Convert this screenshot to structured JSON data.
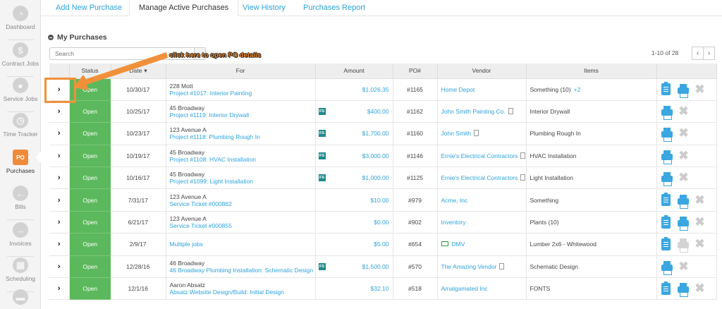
{
  "sidebar": {
    "items": [
      {
        "label": "Dashboard",
        "icon": "dashboard-gauge-icon",
        "glyph": "◔"
      },
      {
        "label": "Contract Jobs",
        "icon": "contract-document-icon",
        "glyph": "$"
      },
      {
        "label": "Service Jobs",
        "icon": "map-pin-icon",
        "glyph": "●"
      },
      {
        "label": "Time Tracker",
        "icon": "clock-icon",
        "glyph": "◷"
      },
      {
        "label": "Purchases",
        "icon": "po-icon",
        "glyph": "PO",
        "active": true
      },
      {
        "label": "Bills",
        "icon": "arrow-left-circle-icon",
        "glyph": "←"
      },
      {
        "label": "Invoices",
        "icon": "arrow-right-circle-icon",
        "glyph": "→"
      },
      {
        "label": "Scheduling",
        "icon": "calendar-icon",
        "glyph": "▦"
      },
      {
        "label": "",
        "icon": "archive-box-icon",
        "glyph": "▬"
      }
    ]
  },
  "tabs": [
    {
      "label": "Add New Purchase"
    },
    {
      "label": "Manage Active Purchases",
      "active": true
    },
    {
      "label": "View History"
    },
    {
      "label": "Purchases Report"
    }
  ],
  "section_title": "My Purchases",
  "search": {
    "placeholder": "Search"
  },
  "pager": {
    "text": "1-10 of 28",
    "prev": "‹",
    "next": "›"
  },
  "annotation": {
    "text": "click here to open PO details",
    "color": "#f0913a"
  },
  "table": {
    "headers": [
      "",
      "Status",
      "Date",
      "For",
      "Amount",
      "PO#",
      "Vendor",
      "Items",
      ""
    ],
    "sort_indicator": "▾",
    "rows": [
      {
        "status": "Open",
        "date": "10/30/17",
        "address": "228 Mott",
        "job": "Project #1017: Interior Painting",
        "fs": false,
        "amount": "$1,026.35",
        "po": "#1165",
        "vendor": "Home Depot",
        "vendor_doc": false,
        "vendor_email": false,
        "items": "Something (10)",
        "items_more": "+2",
        "clipboard": true,
        "print_enabled": true
      },
      {
        "status": "Open",
        "date": "10/25/17",
        "address": "45 Broadway",
        "job": "Project #1119: Interior Drywall",
        "fs": true,
        "amount": "$400.00",
        "po": "#1162",
        "vendor": "John Smith Painting Co.",
        "vendor_doc": true,
        "vendor_email": false,
        "items": "Interior Drywall",
        "clipboard": false,
        "print_enabled": true
      },
      {
        "status": "Open",
        "date": "10/23/17",
        "address": "123 Avenue A",
        "job": "Project #1118: Plumbing Rough In",
        "fs": true,
        "amount": "$1,700.00",
        "po": "#1160",
        "vendor": "John Smith",
        "vendor_doc": true,
        "vendor_email": false,
        "items": "Plumbing Rough In",
        "clipboard": false,
        "print_enabled": true
      },
      {
        "status": "Open",
        "date": "10/19/17",
        "address": "45 Broadway",
        "job": "Project #1108: HVAC Installation",
        "fs": true,
        "amount": "$3,000.00",
        "po": "#1146",
        "vendor": "Ernie's Electrical Contractors",
        "vendor_doc": true,
        "vendor_email": false,
        "items": "HVAC Installation",
        "clipboard": false,
        "print_enabled": true
      },
      {
        "status": "Open",
        "date": "10/16/17",
        "address": "45 Broadway",
        "job": "Project #1099: Light Installation",
        "fs": true,
        "amount": "$1,000.00",
        "po": "#1125",
        "vendor": "Ernie's Electrical Contractors",
        "vendor_doc": true,
        "vendor_email": false,
        "items": "Light Installation",
        "clipboard": false,
        "print_enabled": true
      },
      {
        "status": "Open",
        "date": "7/31/17",
        "address": "123 Avenue A",
        "job": "Service Ticket #000862",
        "fs": false,
        "amount": "$10.00",
        "po": "#979",
        "vendor": "Acme, Inc",
        "vendor_doc": false,
        "vendor_email": false,
        "items": "Something",
        "clipboard": true,
        "print_enabled": true
      },
      {
        "status": "Open",
        "date": "6/21/17",
        "address": "123 Avenue A",
        "job": "Service Ticket #000855",
        "fs": false,
        "amount": "$0.00",
        "po": "#902",
        "vendor": "Inventory",
        "vendor_doc": false,
        "vendor_email": false,
        "items": "Plants (10)",
        "clipboard": true,
        "print_enabled": true
      },
      {
        "status": "Open",
        "date": "2/9/17",
        "address": "",
        "job": "Multiple jobs",
        "fs": false,
        "amount": "$5.00",
        "po": "#654",
        "vendor": "DMV",
        "vendor_doc": false,
        "vendor_email": true,
        "items": "Lumber 2x6 - Whitewood",
        "clipboard": true,
        "print_enabled": false
      },
      {
        "status": "Open",
        "date": "12/28/16",
        "address": "46 Broadway",
        "job": "46 Broadway Plumbing Installation: Schematic Design",
        "fs": true,
        "amount": "$1,500.00",
        "po": "#570",
        "vendor": "The Amazing Vendor",
        "vendor_doc": true,
        "vendor_email": false,
        "items": "Schematic Design",
        "clipboard": false,
        "print_enabled": true
      },
      {
        "status": "Open",
        "date": "12/1/16",
        "address": "Aaron Absatz",
        "job": "Absatz Website Design/Build: Initial Design",
        "fs": false,
        "amount": "$32.10",
        "po": "#518",
        "vendor": "Amalgamated Inc",
        "vendor_doc": false,
        "vendor_email": false,
        "items": "FONTS",
        "clipboard": true,
        "print_enabled": true
      }
    ],
    "fs_label": "FS",
    "expand_glyph": "›"
  },
  "colors": {
    "accent": "#2ea3dc",
    "status_open": "#5cb85c",
    "active_nav": "#ef8a3a"
  }
}
